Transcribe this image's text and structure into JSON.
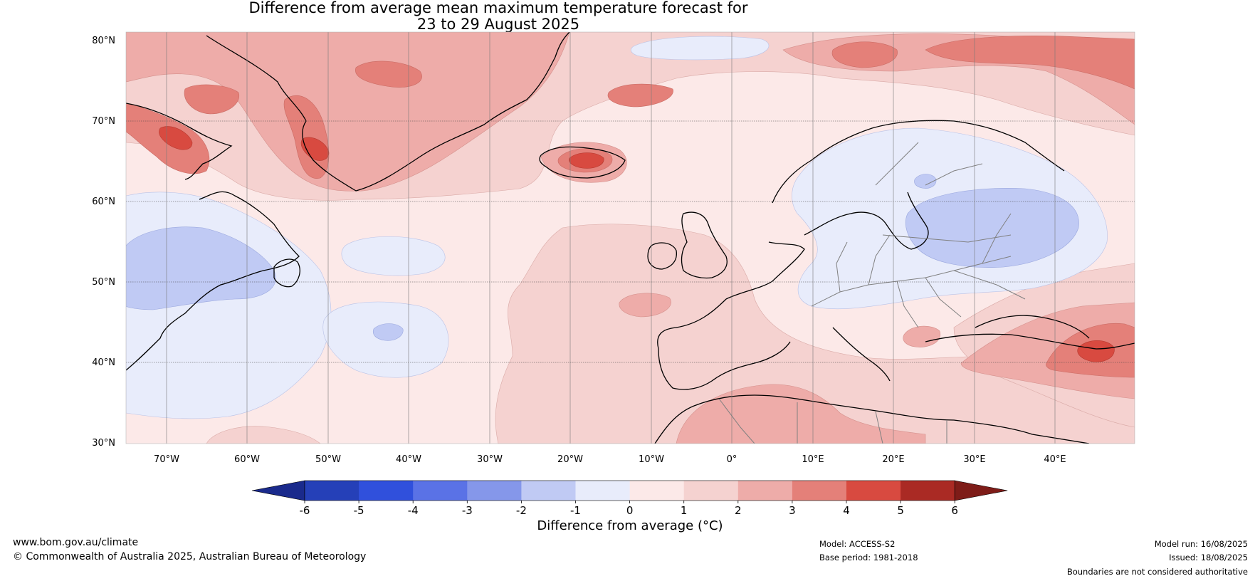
{
  "title_line1": "Difference from average mean maximum temperature forecast for",
  "title_line2": "23 to 29 August 2025",
  "lat_labels": [
    "80°N",
    "70°N",
    "60°N",
    "50°N",
    "40°N",
    "30°N"
  ],
  "lon_labels": [
    "70°W",
    "60°W",
    "50°W",
    "40°W",
    "30°W",
    "20°W",
    "10°W",
    "0°",
    "10°E",
    "20°E",
    "30°E",
    "40°E"
  ],
  "colorbar": {
    "ticks": [
      "-6",
      "-5",
      "-4",
      "-3",
      "-2",
      "-1",
      "0",
      "1",
      "2",
      "3",
      "4",
      "5",
      "6"
    ],
    "colors": [
      "#1a2a8c",
      "#2540b8",
      "#3050dc",
      "#5a72e6",
      "#8597ea",
      "#c0caf4",
      "#e8ecfb",
      "#fce9e8",
      "#f5d2d0",
      "#eeaca9",
      "#e48079",
      "#d84a40",
      "#aa2a24",
      "#7e1c18"
    ],
    "label": "Difference from average (°C)"
  },
  "footer": {
    "site": "www.bom.gov.au/climate",
    "copyright": "© Commonwealth of Australia 2025, Australian Bureau of Meteorology",
    "model": "Model: ACCESS-S2",
    "base_period": "Base period: 1981-2018",
    "model_run": "Model run: 16/08/2025",
    "issued": "Issued: 18/08/2025",
    "disclaimer": "Boundaries are not considered authoritative"
  }
}
